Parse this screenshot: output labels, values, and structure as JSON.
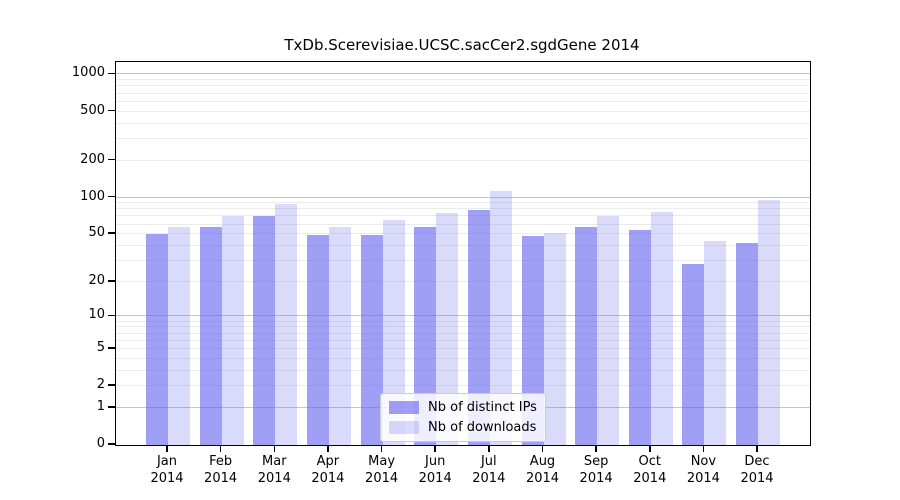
{
  "title": "TxDb.Scerevisiae.UCSC.sacCer2.sgdGene 2014",
  "legend": {
    "items": [
      {
        "label": "Nb of distinct IPs"
      },
      {
        "label": "Nb of downloads"
      }
    ]
  },
  "chart_data": {
    "type": "bar",
    "title": "TxDb.Scerevisiae.UCSC.sacCer2.sgdGene 2014",
    "scale": "log10(1+x)",
    "grid": "on",
    "legend_position": "inside-bottom-center",
    "categories": [
      "Jan",
      "Feb",
      "Mar",
      "Apr",
      "May",
      "Jun",
      "Jul",
      "Aug",
      "Sep",
      "Oct",
      "Nov",
      "Dec"
    ],
    "year": "2014",
    "series": [
      {
        "name": "Nb of distinct IPs",
        "color": "rgba(100,100,240,0.62)",
        "values": [
          50,
          57,
          70,
          49,
          49,
          57,
          79,
          48,
          57,
          54,
          28,
          42
        ]
      },
      {
        "name": "Nb of downloads",
        "color": "rgba(100,100,240,0.24)",
        "values": [
          57,
          70,
          88,
          57,
          65,
          75,
          114,
          51,
          70,
          76,
          44,
          95
        ]
      }
    ],
    "y_ticks": [
      0,
      1,
      2,
      5,
      10,
      20,
      50,
      100,
      200,
      500,
      1000
    ],
    "ylim": [
      0,
      1200
    ],
    "xlabel": "",
    "ylabel": "",
    "colors": {
      "major_grid": "#c6c6c6",
      "minor_grid": "#ebebeb",
      "spine": "#000000"
    }
  }
}
